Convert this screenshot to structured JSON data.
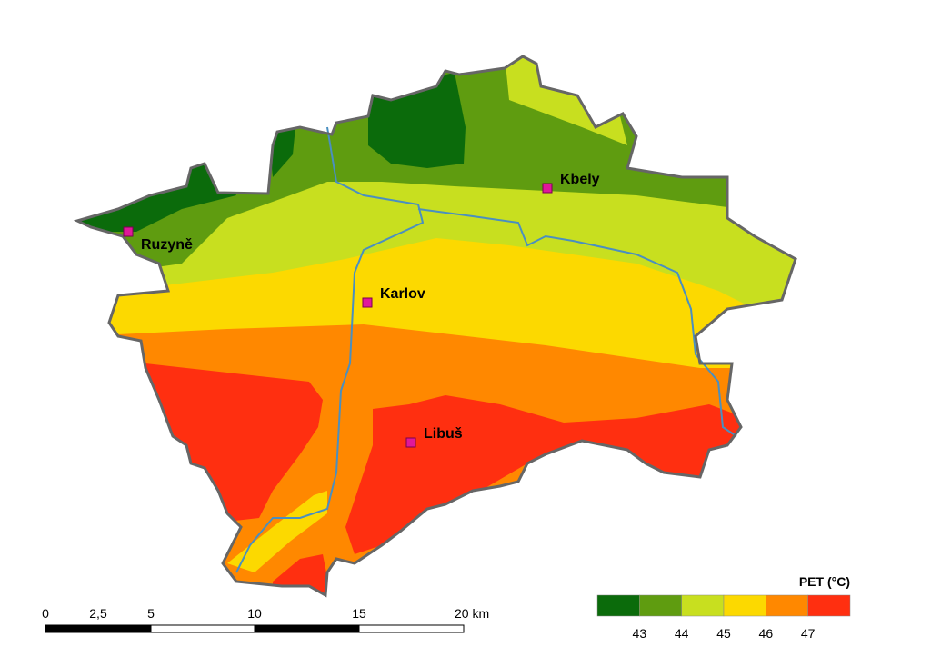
{
  "stations": [
    "Kbely",
    "Ruzyně",
    "Karlov",
    "Libuš"
  ],
  "legend": {
    "title": "PET (°C)",
    "colors": [
      "#0b6b0b",
      "#5f9c10",
      "#c8df1f",
      "#fcd900",
      "#ff8800",
      "#ff2f10"
    ],
    "labels": [
      "43",
      "44",
      "45",
      "46",
      "47"
    ]
  },
  "scale_bar": {
    "labels": [
      "0",
      "2,5",
      "5",
      "10",
      "15",
      "20 km"
    ]
  }
}
